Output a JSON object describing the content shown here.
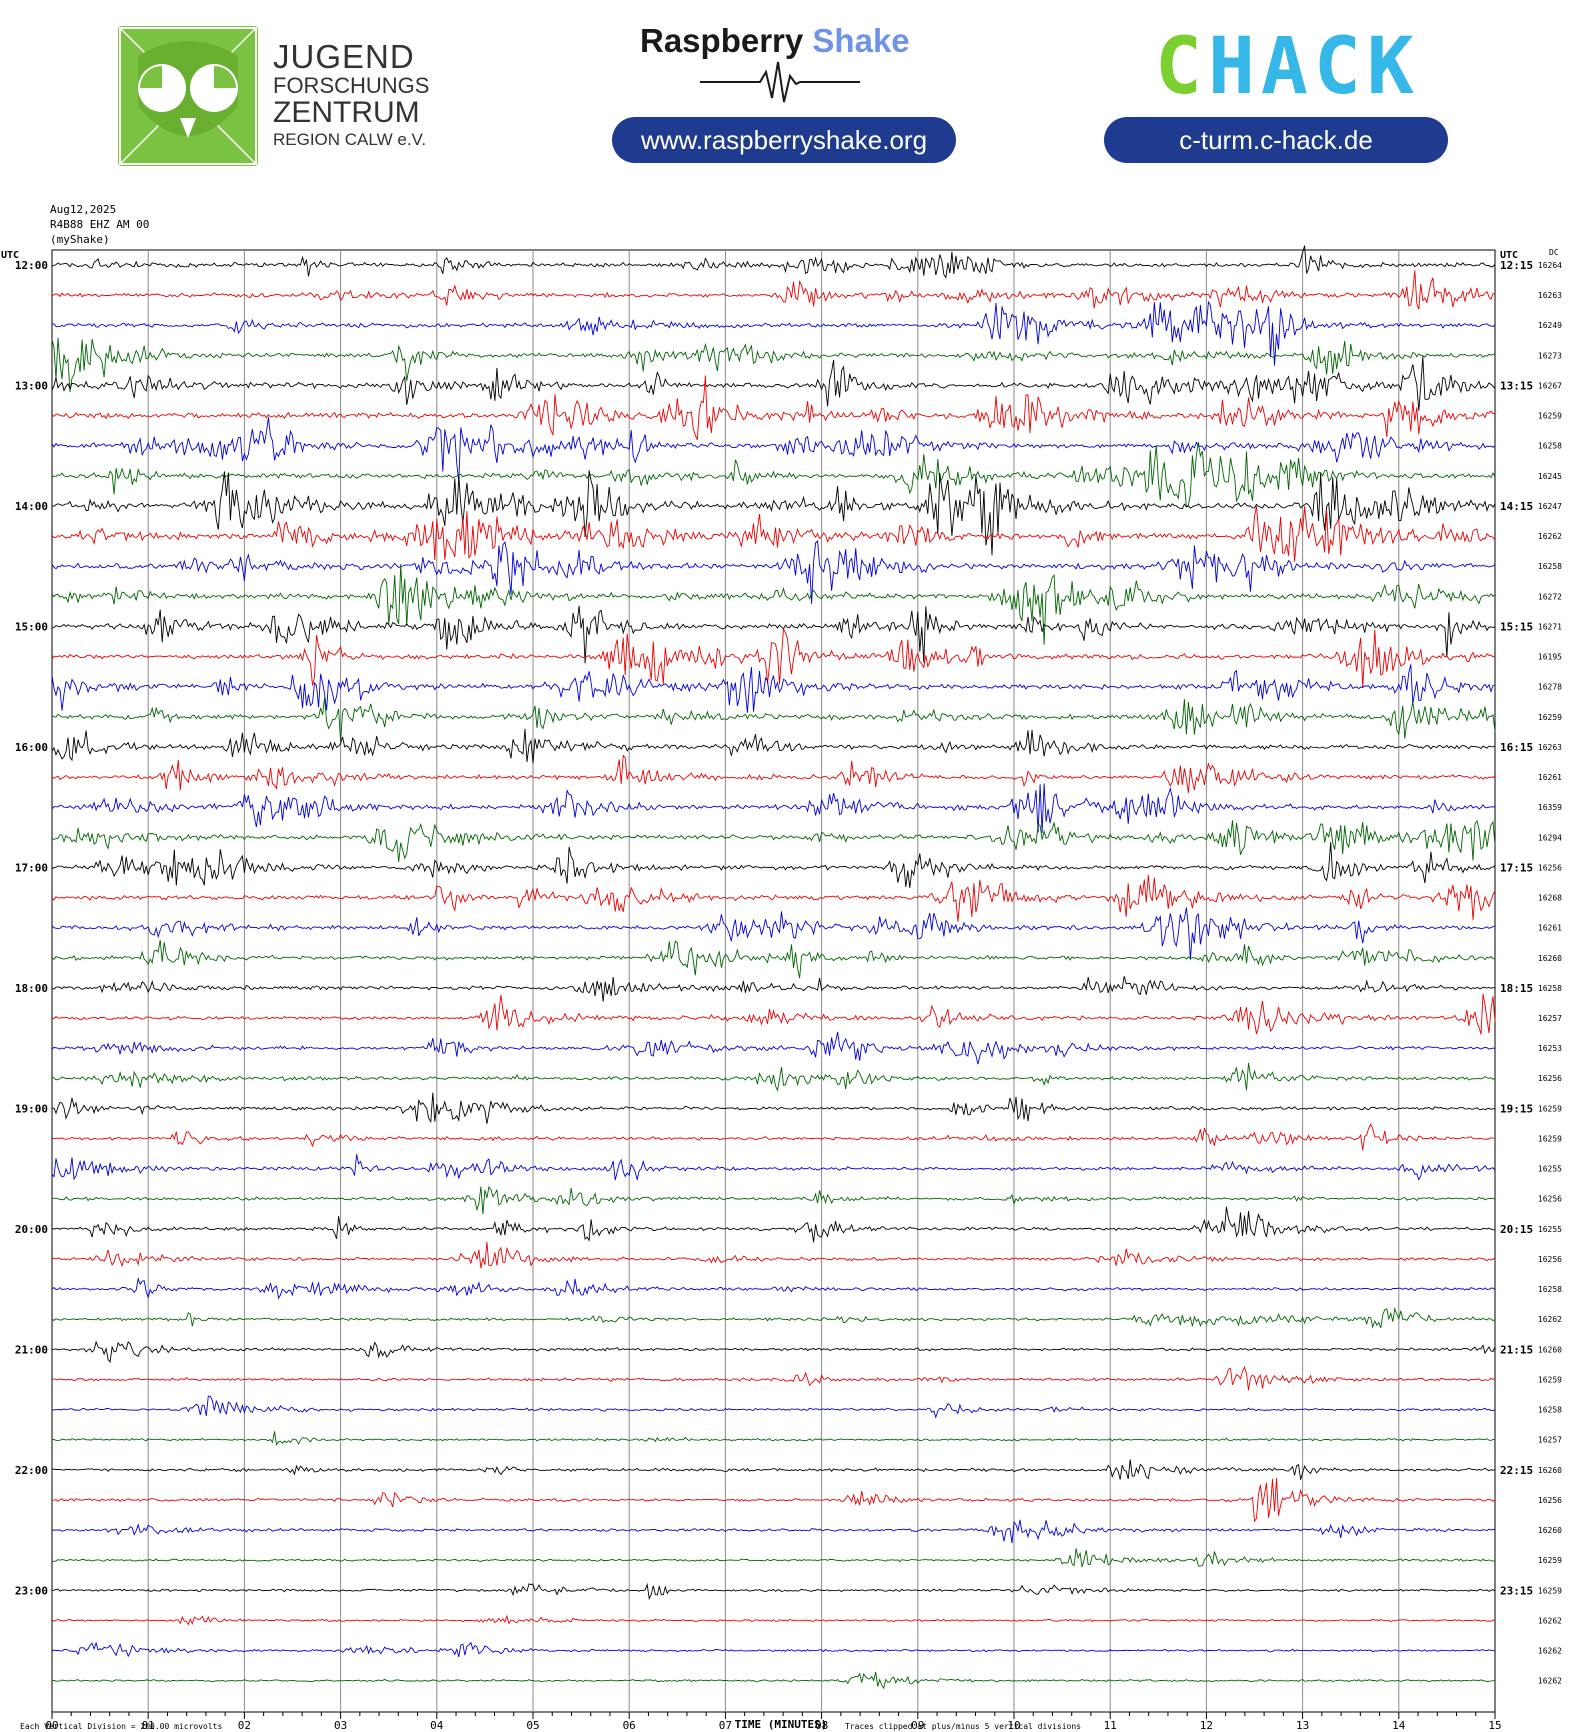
{
  "header": {
    "org_line1": "JUGEND",
    "org_line2": "FORSCHUNGS",
    "org_line3": "ZENTRUM",
    "org_line4": "REGION CALW e.V.",
    "rs_brand_1": "Raspberry",
    "rs_brand_2": "Shake",
    "rs_url": "www.raspberryshake.org",
    "chack_c": "C",
    "chack_rest": "HACK",
    "chack_url": "c-turm.c-hack.de"
  },
  "chart_data": {
    "type": "line",
    "title_lines": [
      "Aug12,2025",
      "R4B88 EHZ AM 00",
      "(myShake)"
    ],
    "left_axis_label": "UTC",
    "right_axis_label": "UTC",
    "dc_label": "DC",
    "xlabel": "TIME (MINUTES)",
    "xlim": [
      0,
      15
    ],
    "x_ticks": [
      "00",
      "01",
      "02",
      "03",
      "04",
      "05",
      "06",
      "07",
      "08",
      "09",
      "10",
      "11",
      "12",
      "13",
      "14",
      "15"
    ],
    "left_time_labels": [
      "12:00",
      "13:00",
      "14:00",
      "15:00",
      "16:00",
      "17:00",
      "18:00",
      "19:00",
      "20:00",
      "21:00",
      "22:00",
      "23:00"
    ],
    "right_time_labels": [
      "12:15",
      "13:15",
      "14:15",
      "15:15",
      "16:15",
      "17:15",
      "18:15",
      "19:15",
      "20:15",
      "21:15",
      "22:15",
      "23:15"
    ],
    "line_minutes": 15,
    "trace_colors": [
      "#000000",
      "#ee0000",
      "#0000dd",
      "#006600"
    ],
    "dc_offsets": [
      16264,
      16263,
      16249,
      16273,
      16267,
      16259,
      16258,
      16245,
      16247,
      16262,
      16258,
      16272,
      16271,
      16195,
      16278,
      16259,
      16263,
      16261,
      16359,
      16294,
      16256,
      16268,
      16261,
      16260,
      16258,
      16257,
      16253,
      16256,
      16259,
      16259,
      16255,
      16256,
      16255,
      16256,
      16258,
      16262,
      16260,
      16259,
      16258,
      16257,
      16260,
      16256,
      16260,
      16259,
      16259,
      16262,
      16262,
      16262
    ],
    "activity_level": [
      1.5,
      1.4,
      1.6,
      1.6,
      2.0,
      2.2,
      2.1,
      2.1,
      2.6,
      2.4,
      2.3,
      2.1,
      2.2,
      2.0,
      1.9,
      1.9,
      1.6,
      1.6,
      1.8,
      1.7,
      1.5,
      1.6,
      1.4,
      1.3,
      1.1,
      1.1,
      1.0,
      1.0,
      1.0,
      0.9,
      0.9,
      0.9,
      0.9,
      0.8,
      0.7,
      0.6,
      0.6,
      0.6,
      0.5,
      0.3,
      0.7,
      0.6,
      0.6,
      0.3,
      0.4,
      0.2,
      0.2,
      0.2
    ],
    "footer_left": "Each Vertical Division =  200.00 microvolts",
    "footer_right": "Traces clipped at plus/minus 5 vertical divisions",
    "grid": true
  }
}
